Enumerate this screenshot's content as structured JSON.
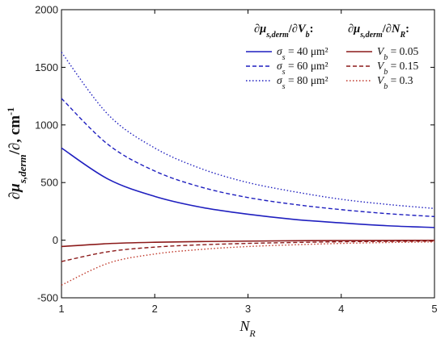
{
  "chart_data": {
    "type": "line",
    "xlabel": "N_R",
    "ylabel": "∂μs,derm/∂, cm-1",
    "xlim": [
      1,
      5
    ],
    "ylim": [
      -500,
      2000
    ],
    "xticks": [
      1,
      2,
      3,
      4,
      5
    ],
    "yticks": [
      -500,
      0,
      500,
      1000,
      1500,
      2000
    ],
    "xtick_labels": [
      "1",
      "2",
      "3",
      "4",
      "5"
    ],
    "ytick_labels": [
      "-500",
      "0",
      "500",
      "1000",
      "1500",
      "2000"
    ],
    "grid": false,
    "legend_placement": "top-right",
    "legend_groups": [
      {
        "title": "∂μs,derm/∂Vb:",
        "series": [
          0,
          1,
          2
        ]
      },
      {
        "title": "∂μs,derm/∂NR:",
        "series": [
          3,
          4,
          5
        ]
      }
    ],
    "x": [
      1,
      1.5,
      2,
      2.5,
      3,
      3.5,
      4,
      4.5,
      5
    ],
    "series": [
      {
        "name": "σs = 40 μm²",
        "color": "#1f1fbf",
        "dash": "solid",
        "values": [
          800,
          530,
          380,
          285,
          225,
          180,
          150,
          125,
          110
        ]
      },
      {
        "name": "σs = 60 μm²",
        "color": "#1f1fbf",
        "dash": "dashed",
        "values": [
          1230,
          830,
          600,
          460,
          370,
          310,
          265,
          230,
          205
        ]
      },
      {
        "name": "σs = 80 μm²",
        "color": "#1f1fbf",
        "dash": "dotted",
        "values": [
          1630,
          1090,
          800,
          620,
          500,
          420,
          355,
          310,
          275
        ]
      },
      {
        "name": "Vb = 0.05",
        "color": "#8b1a1a",
        "dash": "solid",
        "values": [
          -55,
          -30,
          -18,
          -12,
          -8,
          -5,
          -3,
          -2,
          -1
        ]
      },
      {
        "name": "Vb = 0.15",
        "color": "#8b1a1a",
        "dash": "dashed",
        "values": [
          -185,
          -100,
          -60,
          -40,
          -28,
          -20,
          -14,
          -10,
          -8
        ]
      },
      {
        "name": "Vb = 0.3",
        "color": "#c0392b",
        "dash": "dotted",
        "values": [
          -390,
          -200,
          -120,
          -80,
          -55,
          -40,
          -28,
          -20,
          -15
        ]
      }
    ]
  }
}
